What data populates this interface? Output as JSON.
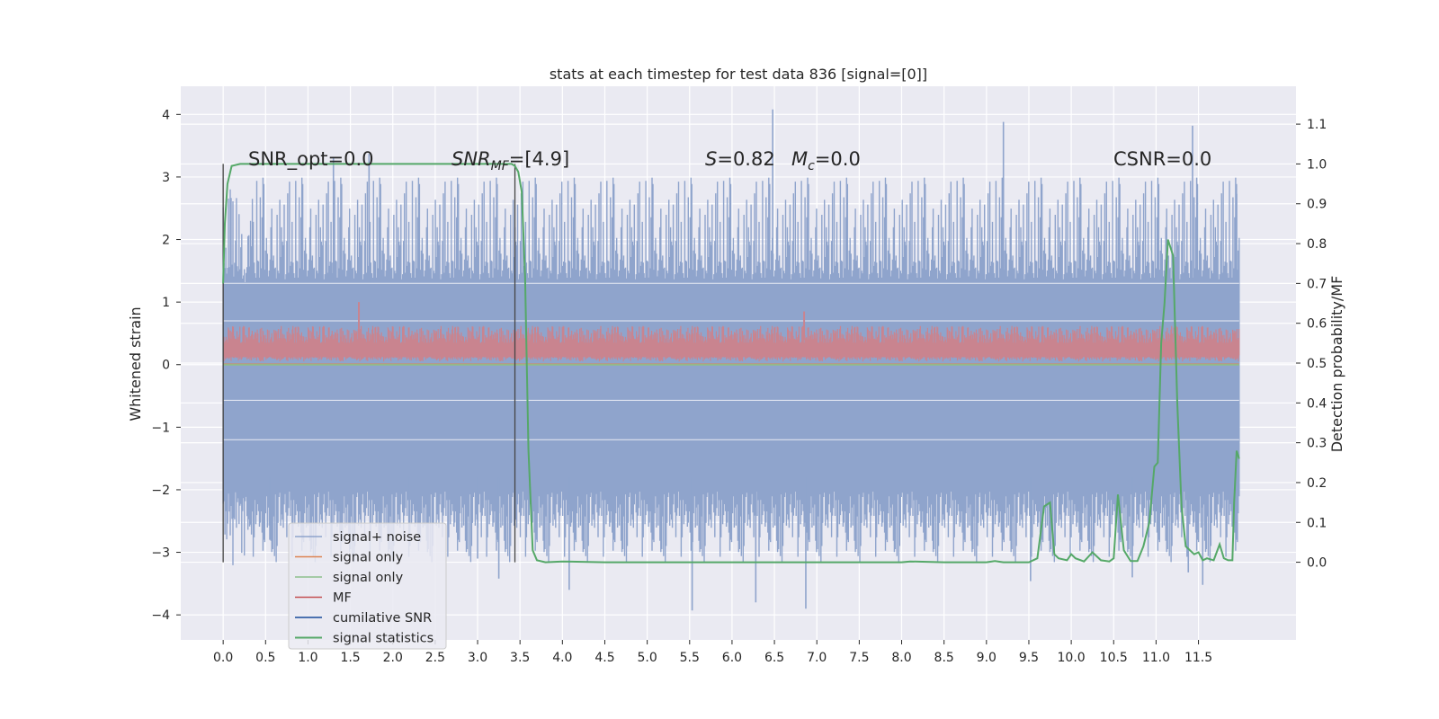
{
  "chart_data": {
    "type": "line",
    "title": "stats at each timestep for test data 836 [signal=[0]]",
    "xlabel": "",
    "ylabel": "Whitened strain",
    "y2label": "Detection probability/MF",
    "xlim": [
      -0.5,
      12.65
    ],
    "ylim": [
      -4.4,
      4.45
    ],
    "y2lim": [
      -0.195,
      1.195
    ],
    "x_ticks": [
      "0.0",
      "0.5",
      "1.0",
      "1.5",
      "2.0",
      "2.5",
      "3.0",
      "3.5",
      "4.0",
      "4.5",
      "5.0",
      "5.5",
      "6.0",
      "6.5",
      "7.0",
      "7.5",
      "8.0",
      "8.5",
      "9.0",
      "9.5",
      "10.0",
      "10.5",
      "11.0",
      "11.5"
    ],
    "y_ticks": [
      -4,
      -3,
      -2,
      -1,
      0,
      1,
      2,
      3,
      4
    ],
    "y_tick_labels": [
      "−4",
      "−3",
      "−2",
      "−1",
      "0",
      "1",
      "2",
      "3",
      "4"
    ],
    "y2_ticks": [
      "0.0",
      "0.1",
      "0.2",
      "0.3",
      "0.4",
      "0.5",
      "0.6",
      "0.7",
      "0.8",
      "0.9",
      "1.0",
      "1.1"
    ],
    "grid": true,
    "legend_position": "lower-left",
    "annotations": {
      "snr_opt": "SNR_opt=0.0",
      "snr_mf_prefix": "SNR",
      "snr_mf_sub": "MF",
      "snr_mf_suffix": "=[4.9]",
      "s_symbol": "S",
      "s_value": "=0.82",
      "mc_symbol": "M",
      "mc_sub": "c",
      "mc_value": "=0.0",
      "csnr": "CSNR=0.0"
    },
    "legend": [
      {
        "label": "signal+ noise",
        "color": "#8fa4cc"
      },
      {
        "label": "signal only",
        "color": "#dd8452"
      },
      {
        "label": "signal only",
        "color": "#8dbf8d"
      },
      {
        "label": "MF",
        "color": "#c44e52"
      },
      {
        "label": "cumilative SNR",
        "color": "#4c72b0"
      },
      {
        "label": "signal statistics",
        "color": "#55a868"
      }
    ],
    "vertical_markers_x": [
      0.0,
      3.44
    ],
    "series": [
      {
        "label_ref": "signal+ noise",
        "axis": "left",
        "x_range": [
          0.0,
          11.98
        ],
        "band_low": [
          -2.5,
          -2.0
        ],
        "band_high": [
          1.3,
          1.6
        ],
        "peaks": [
          {
            "x": 6.48,
            "y": 4.08
          },
          {
            "x": 9.2,
            "y": 3.88
          },
          {
            "x": 11.43,
            "y": 3.82
          },
          {
            "x": 1.72,
            "y": 3.37
          },
          {
            "x": 1.3,
            "y": 3.32
          },
          {
            "x": 11.95,
            "y": 2.73
          },
          {
            "x": 5.53,
            "y": -3.93
          },
          {
            "x": 6.87,
            "y": -3.9
          },
          {
            "x": 6.28,
            "y": -3.8
          },
          {
            "x": 3.25,
            "y": -3.42
          },
          {
            "x": 4.08,
            "y": -3.6
          },
          {
            "x": 9.52,
            "y": -3.46
          },
          {
            "x": 11.55,
            "y": -3.52
          },
          {
            "x": 11.38,
            "y": -3.32
          },
          {
            "x": 10.72,
            "y": -3.4
          },
          {
            "x": 0.55,
            "y": -2.8
          },
          {
            "x": 2.2,
            "y": -2.9
          },
          {
            "x": 3.0,
            "y": -3.1
          }
        ]
      },
      {
        "label_ref": "MF",
        "axis": "left",
        "x_range": [
          0.0,
          11.98
        ],
        "band": [
          0.05,
          0.6
        ],
        "peaks": [
          {
            "x": 1.6,
            "y": 1.0
          },
          {
            "x": 6.85,
            "y": 0.85
          }
        ]
      },
      {
        "label_ref": "signal statistics",
        "axis": "right",
        "x": [
          0.0,
          0.02,
          0.05,
          0.1,
          0.2,
          0.5,
          1.0,
          2.0,
          3.0,
          3.3,
          3.4,
          3.44,
          3.48,
          3.52,
          3.56,
          3.6,
          3.65,
          3.7,
          3.8,
          4.0,
          4.5,
          5.0,
          6.0,
          7.0,
          8.0,
          8.1,
          8.5,
          9.0,
          9.1,
          9.2,
          9.5,
          9.6,
          9.68,
          9.75,
          9.8,
          9.85,
          9.95,
          10.0,
          10.05,
          10.15,
          10.25,
          10.35,
          10.45,
          10.5,
          10.55,
          10.62,
          10.7,
          10.78,
          10.85,
          10.92,
          10.98,
          11.02,
          11.06,
          11.1,
          11.14,
          11.2,
          11.25,
          11.3,
          11.35,
          11.45,
          11.5,
          11.55,
          11.6,
          11.68,
          11.75,
          11.8,
          11.85,
          11.9,
          11.92,
          11.95,
          11.98
        ],
        "y": [
          0.7,
          0.85,
          0.95,
          0.995,
          1.0,
          1.0,
          1.0,
          1.0,
          1.0,
          1.0,
          1.0,
          0.995,
          0.98,
          0.93,
          0.72,
          0.28,
          0.03,
          0.005,
          0.0,
          0.002,
          0.0,
          0.0,
          0.0,
          0.0,
          0.0,
          0.002,
          0.0,
          0.0,
          0.003,
          0.0,
          0.0,
          0.01,
          0.14,
          0.15,
          0.02,
          0.01,
          0.005,
          0.02,
          0.01,
          0.002,
          0.025,
          0.005,
          0.002,
          0.01,
          0.17,
          0.03,
          0.003,
          0.003,
          0.04,
          0.1,
          0.24,
          0.25,
          0.55,
          0.65,
          0.81,
          0.77,
          0.4,
          0.14,
          0.04,
          0.02,
          0.025,
          0.005,
          0.01,
          0.005,
          0.045,
          0.01,
          0.005,
          0.005,
          0.15,
          0.28,
          0.26
        ]
      }
    ]
  }
}
